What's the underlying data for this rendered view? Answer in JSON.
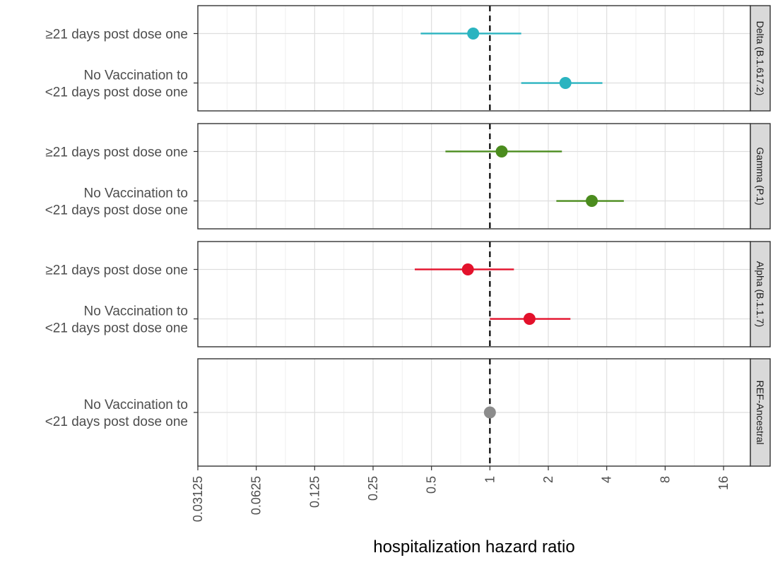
{
  "chart_data": {
    "type": "scatter",
    "subtype": "forest-plot",
    "xlabel": "hospitalization hazard ratio",
    "x_scale": "log2",
    "xlim": [
      0.03125,
      22
    ],
    "x_ticks": [
      0.03125,
      0.0625,
      0.125,
      0.25,
      0.5,
      1,
      2,
      4,
      8,
      16
    ],
    "x_tick_labels": [
      "0.03125",
      "0.0625",
      "0.125",
      "0.25",
      "0.5",
      "1",
      "2",
      "4",
      "8",
      "16"
    ],
    "reference_line": {
      "x": 1,
      "style": "dashed"
    },
    "grid": true,
    "legend": "none",
    "panels": [
      {
        "strip": "Delta (B.1.617.2)",
        "color": "#2bb4c0",
        "rows": [
          {
            "label_lines": [
              "≥21 days post dose one"
            ],
            "estimate": 0.82,
            "lower": 0.44,
            "upper": 1.45
          },
          {
            "label_lines": [
              "No Vaccination to",
              "<21 days post dose one"
            ],
            "estimate": 2.45,
            "lower": 1.45,
            "upper": 3.8
          }
        ]
      },
      {
        "strip": "Gamma (P.1)",
        "color": "#4b8c1e",
        "rows": [
          {
            "label_lines": [
              "≥21 days post dose one"
            ],
            "estimate": 1.15,
            "lower": 0.59,
            "upper": 2.35
          },
          {
            "label_lines": [
              "No Vaccination to",
              "<21 days post dose one"
            ],
            "estimate": 3.35,
            "lower": 2.2,
            "upper": 4.9
          }
        ]
      },
      {
        "strip": "Alpha (B.1.1.7)",
        "color": "#e3112b",
        "rows": [
          {
            "label_lines": [
              "≥21 days post dose one"
            ],
            "estimate": 0.77,
            "lower": 0.41,
            "upper": 1.33
          },
          {
            "label_lines": [
              "No Vaccination to",
              "<21 days post dose one"
            ],
            "estimate": 1.6,
            "lower": 1.0,
            "upper": 2.6
          }
        ]
      },
      {
        "strip": "REF-Ancestral",
        "color": "#8c8c8c",
        "rows": [
          {
            "label_lines": [
              "No Vaccination to",
              "<21 days post dose one"
            ],
            "estimate": 1.0,
            "lower": 1.0,
            "upper": 1.0
          }
        ]
      }
    ]
  }
}
